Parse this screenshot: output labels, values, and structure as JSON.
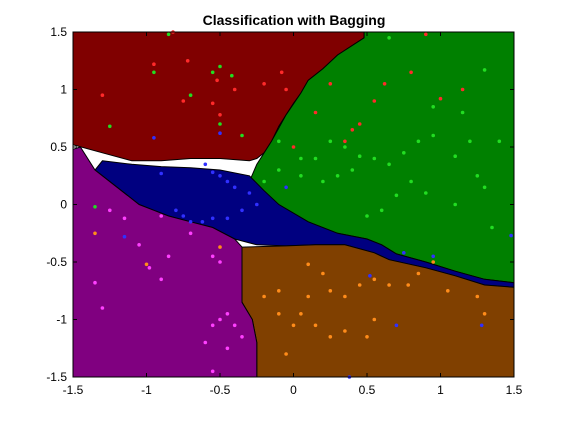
{
  "chart_data": {
    "type": "scatter",
    "title": "Classification with Bagging",
    "xlabel": "",
    "ylabel": "",
    "xlim": [
      -1.5,
      1.5
    ],
    "ylim": [
      -1.5,
      1.5
    ],
    "xticks": [
      -1.5,
      -1,
      -0.5,
      0,
      0.5,
      1,
      1.5
    ],
    "yticks": [
      -1.5,
      -1,
      -0.5,
      0,
      0.5,
      1,
      1.5
    ],
    "xtick_labels": [
      "-1.5",
      "-1",
      "-0.5",
      "0",
      "0.5",
      "1",
      "1.5"
    ],
    "ytick_labels": [
      "-1.5",
      "-1",
      "-0.5",
      "0",
      "0.5",
      "1",
      "1.5"
    ],
    "grid": false,
    "legend": "none",
    "regions": [
      {
        "class": "red",
        "fill": "#800000",
        "polygon": [
          [
            -1.5,
            1.5
          ],
          [
            0.48,
            1.5
          ],
          [
            0.48,
            1.45
          ],
          [
            0.3,
            1.3
          ],
          [
            0.2,
            1.18
          ],
          [
            0.1,
            1.08
          ],
          [
            0.05,
            0.97
          ],
          [
            0,
            0.88
          ],
          [
            -0.05,
            0.78
          ],
          [
            -0.1,
            0.68
          ],
          [
            -0.15,
            0.55
          ],
          [
            -0.2,
            0.45
          ],
          [
            -0.25,
            0.4
          ],
          [
            -0.3,
            0.38
          ],
          [
            -0.5,
            0.4
          ],
          [
            -0.7,
            0.4
          ],
          [
            -0.9,
            0.38
          ],
          [
            -1.1,
            0.38
          ],
          [
            -1.3,
            0.45
          ],
          [
            -1.5,
            0.52
          ]
        ]
      },
      {
        "class": "green",
        "fill": "#008000",
        "polygon": [
          [
            0.48,
            1.5
          ],
          [
            1.5,
            1.5
          ],
          [
            1.5,
            -0.68
          ],
          [
            1.3,
            -0.65
          ],
          [
            1.1,
            -0.58
          ],
          [
            0.9,
            -0.5
          ],
          [
            0.7,
            -0.43
          ],
          [
            0.6,
            -0.35
          ],
          [
            0.5,
            -0.3
          ],
          [
            0.3,
            -0.25
          ],
          [
            0.1,
            -0.15
          ],
          [
            -0.1,
            0.0
          ],
          [
            -0.25,
            0.12
          ],
          [
            -0.3,
            0.2
          ],
          [
            -0.25,
            0.35
          ],
          [
            -0.15,
            0.55
          ],
          [
            -0.05,
            0.78
          ],
          [
            0.05,
            0.97
          ],
          [
            0.1,
            1.08
          ],
          [
            0.2,
            1.18
          ],
          [
            0.3,
            1.3
          ],
          [
            0.48,
            1.45
          ]
        ]
      },
      {
        "class": "blue",
        "fill": "#000080",
        "polygon": [
          [
            -1.3,
            0.38
          ],
          [
            -1.1,
            0.35
          ],
          [
            -0.9,
            0.33
          ],
          [
            -0.7,
            0.32
          ],
          [
            -0.5,
            0.3
          ],
          [
            -0.3,
            0.25
          ],
          [
            -0.2,
            0.12
          ],
          [
            -0.1,
            0.0
          ],
          [
            0.1,
            -0.15
          ],
          [
            0.3,
            -0.25
          ],
          [
            0.5,
            -0.3
          ],
          [
            0.6,
            -0.35
          ],
          [
            0.7,
            -0.43
          ],
          [
            0.9,
            -0.5
          ],
          [
            1.1,
            -0.58
          ],
          [
            1.3,
            -0.65
          ],
          [
            1.5,
            -0.68
          ],
          [
            1.5,
            -0.72
          ],
          [
            1.3,
            -0.7
          ],
          [
            1.1,
            -0.62
          ],
          [
            0.9,
            -0.55
          ],
          [
            0.65,
            -0.48
          ],
          [
            0.55,
            -0.42
          ],
          [
            0.35,
            -0.35
          ],
          [
            0.15,
            -0.35
          ],
          [
            -0.05,
            -0.36
          ],
          [
            -0.25,
            -0.35
          ],
          [
            -0.4,
            -0.3
          ],
          [
            -0.55,
            -0.2
          ],
          [
            -0.7,
            -0.15
          ],
          [
            -0.85,
            -0.1
          ],
          [
            -0.95,
            -0.05
          ],
          [
            -1.05,
            0.0
          ],
          [
            -1.2,
            0.15
          ],
          [
            -1.35,
            0.3
          ]
        ]
      },
      {
        "class": "orange",
        "fill": "#804000",
        "polygon": [
          [
            -0.35,
            -0.37
          ],
          [
            -0.05,
            -0.36
          ],
          [
            0.15,
            -0.35
          ],
          [
            0.35,
            -0.35
          ],
          [
            0.55,
            -0.42
          ],
          [
            0.65,
            -0.48
          ],
          [
            0.9,
            -0.55
          ],
          [
            1.1,
            -0.62
          ],
          [
            1.3,
            -0.7
          ],
          [
            1.5,
            -0.72
          ],
          [
            1.5,
            -1.5
          ],
          [
            -0.25,
            -1.5
          ],
          [
            -0.25,
            -1.2
          ],
          [
            -0.28,
            -1.0
          ],
          [
            -0.35,
            -0.85
          ],
          [
            -0.35,
            -0.5
          ]
        ]
      },
      {
        "class": "purple",
        "fill": "#800080",
        "polygon": [
          [
            -1.5,
            0.48
          ],
          [
            -1.45,
            0.5
          ],
          [
            -1.35,
            0.3
          ],
          [
            -1.2,
            0.15
          ],
          [
            -1.05,
            0.0
          ],
          [
            -0.95,
            -0.05
          ],
          [
            -0.85,
            -0.1
          ],
          [
            -0.7,
            -0.15
          ],
          [
            -0.55,
            -0.2
          ],
          [
            -0.4,
            -0.3
          ],
          [
            -0.35,
            -0.37
          ],
          [
            -0.35,
            -0.5
          ],
          [
            -0.35,
            -0.85
          ],
          [
            -0.28,
            -1.0
          ],
          [
            -0.25,
            -1.2
          ],
          [
            -0.25,
            -1.5
          ],
          [
            -1.5,
            -1.5
          ]
        ]
      }
    ],
    "series": [
      {
        "class": "red",
        "color": "#ff2a2a",
        "points": [
          [
            -1.3,
            0.95
          ],
          [
            -0.95,
            1.22
          ],
          [
            -0.82,
            1.5
          ],
          [
            -0.72,
            1.25
          ],
          [
            -0.4,
            1.0
          ],
          [
            -0.52,
            1.08
          ],
          [
            -0.2,
            1.05
          ],
          [
            -0.08,
            1.15
          ],
          [
            -0.05,
            1.0
          ],
          [
            0.15,
            0.8
          ],
          [
            0.25,
            1.05
          ],
          [
            0.55,
            0.9
          ],
          [
            0.62,
            1.05
          ],
          [
            0.8,
            1.15
          ],
          [
            0.9,
            1.48
          ],
          [
            1.0,
            0.92
          ],
          [
            1.15,
            1.0
          ],
          [
            0.4,
            0.65
          ],
          [
            0.45,
            0.7
          ],
          [
            0.35,
            0.55
          ],
          [
            0.0,
            0.5
          ],
          [
            -0.5,
            0.78
          ],
          [
            -0.75,
            0.9
          ],
          [
            -0.55,
            0.88
          ]
        ]
      },
      {
        "class": "green",
        "color": "#22dd22",
        "points": [
          [
            -0.85,
            1.48
          ],
          [
            -0.95,
            1.15
          ],
          [
            -0.7,
            0.95
          ],
          [
            -0.55,
            1.15
          ],
          [
            -0.5,
            1.2
          ],
          [
            -0.42,
            1.12
          ],
          [
            -0.5,
            0.7
          ],
          [
            -0.35,
            0.6
          ],
          [
            -0.1,
            0.55
          ],
          [
            0.05,
            0.4
          ],
          [
            0.15,
            0.4
          ],
          [
            0.25,
            0.55
          ],
          [
            0.35,
            0.5
          ],
          [
            0.45,
            0.42
          ],
          [
            0.55,
            0.4
          ],
          [
            0.65,
            0.35
          ],
          [
            0.75,
            0.45
          ],
          [
            0.85,
            0.55
          ],
          [
            0.95,
            0.6
          ],
          [
            1.1,
            0.42
          ],
          [
            1.2,
            0.55
          ],
          [
            1.25,
            0.25
          ],
          [
            1.3,
            0.15
          ],
          [
            1.35,
            -0.2
          ],
          [
            1.1,
            0.0
          ],
          [
            0.9,
            0.1
          ],
          [
            0.8,
            0.2
          ],
          [
            0.7,
            0.08
          ],
          [
            0.6,
            -0.05
          ],
          [
            0.5,
            -0.1
          ],
          [
            0.4,
            0.3
          ],
          [
            0.3,
            0.25
          ],
          [
            0.2,
            0.2
          ],
          [
            0.05,
            0.25
          ],
          [
            -0.1,
            0.3
          ],
          [
            -0.2,
            0.2
          ],
          [
            1.15,
            0.8
          ],
          [
            1.3,
            1.17
          ],
          [
            1.4,
            0.55
          ],
          [
            0.65,
            1.45
          ],
          [
            0.95,
            0.85
          ],
          [
            -1.25,
            0.68
          ],
          [
            -1.35,
            -0.02
          ]
        ]
      },
      {
        "class": "blue",
        "color": "#3030ff",
        "points": [
          [
            -0.95,
            0.58
          ],
          [
            -0.9,
            0.27
          ],
          [
            -0.6,
            0.35
          ],
          [
            -0.55,
            0.28
          ],
          [
            -0.5,
            0.25
          ],
          [
            -0.45,
            0.2
          ],
          [
            -0.4,
            0.15
          ],
          [
            -0.3,
            0.1
          ],
          [
            -0.25,
            0.0
          ],
          [
            -0.35,
            -0.05
          ],
          [
            -0.45,
            -0.12
          ],
          [
            -0.55,
            -0.12
          ],
          [
            -0.62,
            -0.15
          ],
          [
            -0.7,
            -0.15
          ],
          [
            -0.75,
            -0.1
          ],
          [
            -0.8,
            -0.05
          ],
          [
            -0.5,
            0.62
          ],
          [
            -0.05,
            0.15
          ],
          [
            -1.15,
            -0.28
          ],
          [
            0.75,
            -0.42
          ],
          [
            0.95,
            -0.45
          ],
          [
            1.48,
            -0.27
          ],
          [
            0.38,
            -1.5
          ],
          [
            0.7,
            -1.05
          ],
          [
            0.52,
            -0.62
          ],
          [
            1.28,
            -1.05
          ]
        ]
      },
      {
        "class": "orange",
        "color": "#ff8c1a",
        "points": [
          [
            -0.2,
            -0.8
          ],
          [
            -0.1,
            -0.75
          ],
          [
            0.1,
            -0.8
          ],
          [
            0.2,
            -0.6
          ],
          [
            0.25,
            -0.75
          ],
          [
            0.35,
            -0.8
          ],
          [
            0.45,
            -0.7
          ],
          [
            0.55,
            -0.65
          ],
          [
            0.65,
            -0.7
          ],
          [
            0.85,
            -0.6
          ],
          [
            0.95,
            -0.5
          ],
          [
            1.05,
            -0.75
          ],
          [
            1.25,
            -0.8
          ],
          [
            0.05,
            -0.95
          ],
          [
            0.15,
            -1.05
          ],
          [
            0.35,
            -1.1
          ],
          [
            0.5,
            -1.15
          ],
          [
            0.55,
            -1.0
          ],
          [
            0.0,
            -1.05
          ],
          [
            -0.1,
            -0.95
          ],
          [
            -0.05,
            -1.3
          ],
          [
            0.25,
            -1.15
          ],
          [
            1.3,
            -0.95
          ],
          [
            0.78,
            -0.7
          ],
          [
            0.1,
            -0.52
          ],
          [
            -1.35,
            -0.25
          ],
          [
            -1.0,
            -0.52
          ],
          [
            -0.5,
            -0.37
          ]
        ]
      },
      {
        "class": "purple",
        "color": "#ff40ff",
        "points": [
          [
            -1.15,
            -0.12
          ],
          [
            -1.05,
            -0.35
          ],
          [
            -0.98,
            -0.55
          ],
          [
            -0.9,
            -0.65
          ],
          [
            -0.7,
            -0.25
          ],
          [
            -0.55,
            -0.45
          ],
          [
            -0.5,
            -0.5
          ],
          [
            -0.45,
            -0.95
          ],
          [
            -0.5,
            -1.0
          ],
          [
            -0.4,
            -1.05
          ],
          [
            -0.55,
            -1.05
          ],
          [
            -0.35,
            -1.15
          ],
          [
            -0.6,
            -1.2
          ],
          [
            -0.45,
            -1.25
          ],
          [
            -1.3,
            -0.9
          ],
          [
            -1.35,
            -0.68
          ],
          [
            -0.85,
            -0.45
          ],
          [
            -0.9,
            -0.1
          ],
          [
            -0.55,
            -1.45
          ],
          [
            -1.25,
            -0.05
          ]
        ]
      }
    ]
  }
}
